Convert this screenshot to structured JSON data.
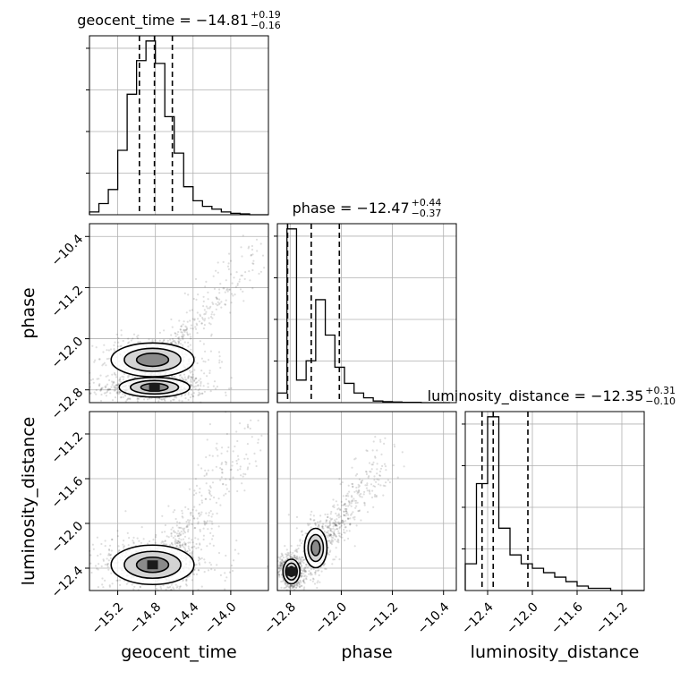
{
  "chart_data": {
    "type": "corner",
    "parameters": [
      "geocent_time",
      "phase",
      "luminosity_distance"
    ],
    "ranges": {
      "geocent_time": [
        -15.5,
        -13.6
      ],
      "phase": [
        -13.0,
        -10.2
      ],
      "luminosity_distance": [
        -12.6,
        -11.0
      ]
    },
    "ticks": {
      "geocent_time": [
        -15.2,
        -14.8,
        -14.4,
        -14.0
      ],
      "phase": [
        -12.8,
        -12.0,
        -11.2,
        -10.4
      ],
      "luminosity_distance": [
        -12.4,
        -12.0,
        -11.6,
        -11.2
      ]
    },
    "tick_labels": {
      "geocent_time": [
        "−15.2",
        "−14.8",
        "−14.4",
        "−14.0"
      ],
      "phase": [
        "−12.8",
        "−12.0",
        "−11.2",
        "−10.4"
      ],
      "luminosity_distance": [
        "−12.4",
        "−12.0",
        "−11.6",
        "−11.2"
      ]
    },
    "titles": [
      {
        "param": "geocent_time",
        "main": "geocent_time = −14.81",
        "upper": "+0.19",
        "lower": "−0.16"
      },
      {
        "param": "phase",
        "main": "phase = −12.47",
        "upper": "+0.44",
        "lower": "−0.37"
      },
      {
        "param": "luminosity_distance",
        "main": "luminosity_distance = −12.35",
        "upper": "+0.31",
        "lower": "−0.10"
      }
    ],
    "quantiles": {
      "geocent_time": [
        -14.97,
        -14.81,
        -14.62
      ],
      "phase": [
        -12.84,
        -12.47,
        -12.03
      ],
      "luminosity_distance": [
        -12.45,
        -12.35,
        -12.04
      ]
    },
    "histograms": {
      "geocent_time": {
        "edges": [
          -15.5,
          -15.4,
          -15.3,
          -15.2,
          -15.1,
          -15.0,
          -14.9,
          -14.8,
          -14.7,
          -14.6,
          -14.5,
          -14.4,
          -14.3,
          -14.2,
          -14.1,
          -14.0,
          -13.9,
          -13.8,
          -13.7,
          -13.6
        ],
        "counts": [
          1,
          4,
          9,
          23,
          43,
          55,
          62,
          54,
          35,
          22,
          10,
          5,
          3,
          2,
          1,
          0.5,
          0.3,
          0,
          0
        ]
      },
      "phase": {
        "edges": [
          -13.0,
          -12.85,
          -12.7,
          -12.55,
          -12.4,
          -12.25,
          -12.1,
          -11.95,
          -11.8,
          -11.65,
          -11.5,
          -11.35,
          -11.2,
          -11.05,
          -10.9,
          -10.75,
          -10.6,
          -10.45,
          -10.3
        ],
        "counts": [
          3,
          54,
          7,
          13,
          32,
          21,
          11,
          6,
          3,
          1.5,
          0.5,
          0.3,
          0.2,
          0.1,
          0.1,
          0,
          0,
          0
        ]
      },
      "luminosity_distance": {
        "edges": [
          -12.6,
          -12.5,
          -12.4,
          -12.3,
          -12.2,
          -12.1,
          -12.0,
          -11.9,
          -11.8,
          -11.7,
          -11.6,
          -11.5,
          -11.4,
          -11.3,
          -11.2,
          -11.1,
          -11.0
        ],
        "counts": [
          6,
          24,
          39,
          14,
          8,
          6,
          5,
          4,
          3,
          2,
          1,
          0.5,
          0.5,
          0,
          0,
          0
        ]
      }
    },
    "contours": {
      "phase_vs_geocent_time": {
        "modes": [
          {
            "center": [
              -14.81,
              -12.76
            ],
            "sigma": [
              0.17,
              0.07
            ],
            "weight": 1.0
          },
          {
            "center": [
              -14.83,
              -12.33
            ],
            "sigma": [
              0.2,
              0.12
            ],
            "weight": 0.55
          }
        ],
        "tail": {
          "from": [
            -14.6,
            -12.1
          ],
          "to": [
            -13.7,
            -10.6
          ],
          "weight": 0.25
        }
      },
      "luminosity_distance_vs_geocent_time": {
        "modes": [
          {
            "center": [
              -14.83,
              -12.37
            ],
            "sigma": [
              0.2,
              0.08
            ],
            "weight": 1.0
          }
        ],
        "tail": {
          "from": [
            -14.6,
            -12.2
          ],
          "to": [
            -13.8,
            -11.2
          ],
          "weight": 0.3
        }
      },
      "luminosity_distance_vs_phase": {
        "modes": [
          {
            "center": [
              -12.78,
              -12.43
            ],
            "sigma": [
              0.06,
              0.05
            ],
            "weight": 1.0
          },
          {
            "center": [
              -12.4,
              -12.22
            ],
            "sigma": [
              0.08,
              0.08
            ],
            "weight": 0.45
          }
        ],
        "tail": {
          "from": [
            -12.2,
            -12.1
          ],
          "to": [
            -11.3,
            -11.4
          ],
          "weight": 0.35
        }
      }
    },
    "grid": true,
    "xlabels": [
      "geocent_time",
      "phase",
      "luminosity_distance"
    ],
    "ylabels": [
      "",
      "phase",
      "luminosity_distance"
    ]
  }
}
